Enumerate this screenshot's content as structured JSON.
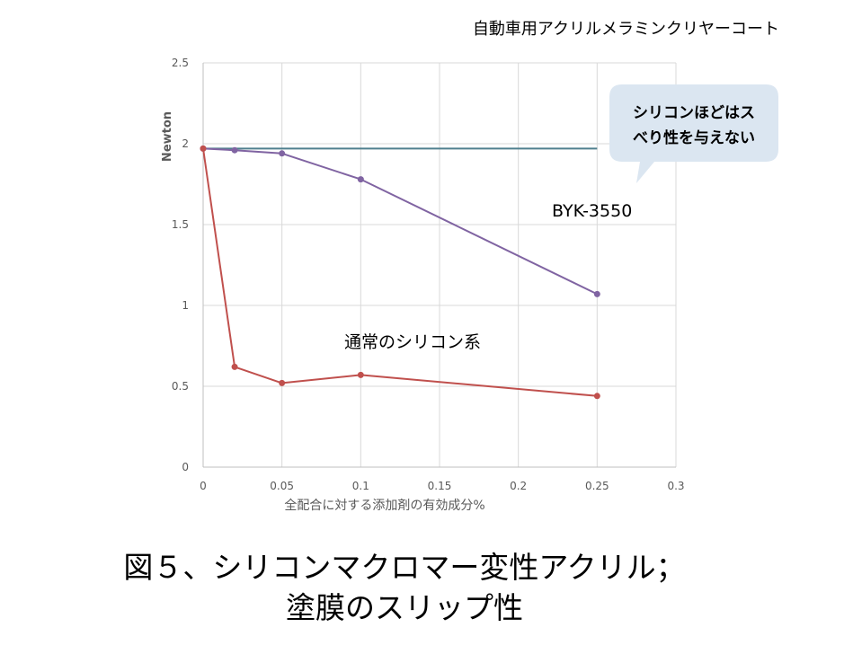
{
  "header": {
    "title": "自動車用アクリルメラミンクリヤーコート"
  },
  "chart_data": {
    "type": "line",
    "ylabel": "Newton",
    "xlabel": "全配合に対する添加剤の有効成分%",
    "xlim": [
      0,
      0.3
    ],
    "ylim": [
      0,
      2.5
    ],
    "x_ticks": [
      0,
      0.05,
      0.1,
      0.15,
      0.2,
      0.25,
      0.3
    ],
    "y_ticks": [
      0,
      0.5,
      1,
      1.5,
      2,
      2.5
    ],
    "x_tick_labels": [
      "0",
      "0.05",
      "0.1",
      "0.15",
      "0.2",
      "0.25",
      "0.3"
    ],
    "y_tick_labels": [
      "0",
      "0.5",
      "1",
      "1.5",
      "2",
      "2.5"
    ],
    "grid": true,
    "series": [
      {
        "name": "BYK-3550",
        "color": "#8064a2",
        "markers": true,
        "points": [
          [
            0,
            1.97
          ],
          [
            0.02,
            1.96
          ],
          [
            0.05,
            1.94
          ],
          [
            0.1,
            1.78
          ],
          [
            0.25,
            1.07
          ]
        ]
      },
      {
        "name": "通常のシリコン系",
        "color": "#c0504d",
        "markers": true,
        "points": [
          [
            0,
            1.97
          ],
          [
            0.02,
            0.62
          ],
          [
            0.05,
            0.52
          ],
          [
            0.1,
            0.57
          ],
          [
            0.25,
            0.44
          ]
        ]
      },
      {
        "name": "",
        "color": "#4f7f8e",
        "markers": false,
        "points": [
          [
            0,
            1.97
          ],
          [
            0.25,
            1.97
          ]
        ]
      }
    ],
    "callout": {
      "lines": [
        "シリコンほどはス",
        "べり性を与えない"
      ],
      "fill": "#dbe6f1"
    }
  },
  "caption": {
    "line1": "図５、シリコンマクロマー変性アクリル；",
    "line2": "塗膜のスリップ性"
  }
}
